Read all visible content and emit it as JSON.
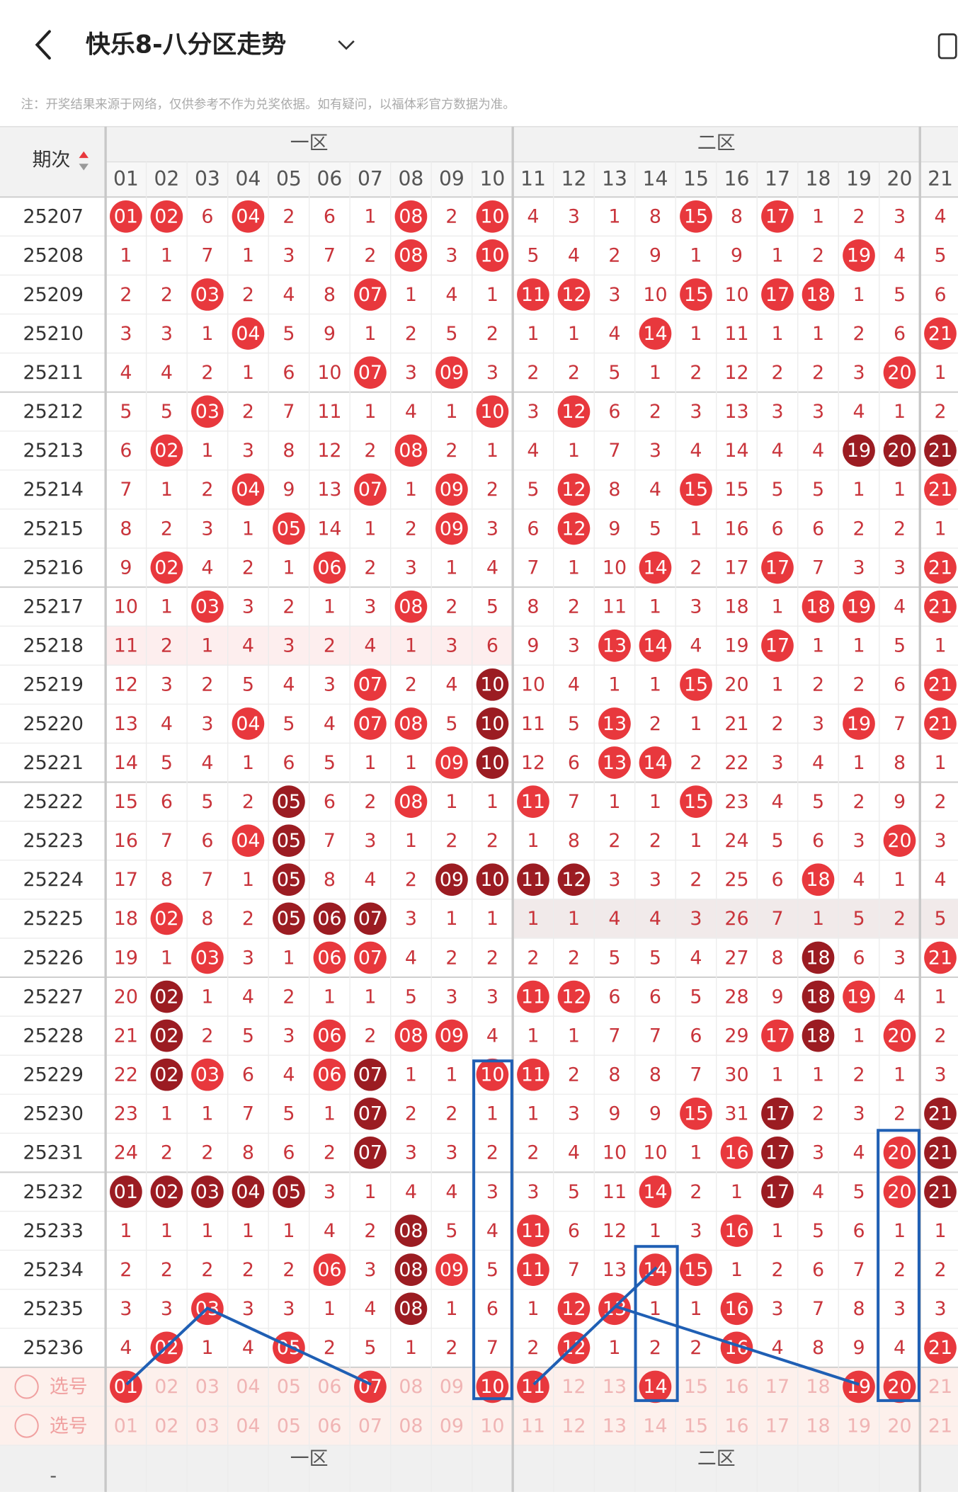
{
  "header": {
    "title": "快乐8-八分区走势",
    "note": "注：开奖结果来源于网络，仅供参考不作为兑奖依据。如有疑问，以福体彩官方数据为准。"
  },
  "table": {
    "period_header": "期次",
    "zones": [
      "一区",
      "二区"
    ],
    "columns": [
      "01",
      "02",
      "03",
      "04",
      "05",
      "06",
      "07",
      "08",
      "09",
      "10",
      "11",
      "12",
      "13",
      "14",
      "15",
      "16",
      "17",
      "18",
      "19",
      "20",
      "21"
    ],
    "rows": [
      {
        "period": "25207",
        "cells": [
          "01",
          "02",
          "6",
          "04",
          "2",
          "6",
          "1",
          "08",
          "2",
          "10",
          "4",
          "3",
          "1",
          "8",
          "15",
          "8",
          "17",
          "1",
          "2",
          "3",
          "4"
        ],
        "red_balls": [
          0,
          1,
          3,
          7,
          9,
          14,
          16
        ],
        "dark_balls": []
      },
      {
        "period": "25208",
        "cells": [
          "1",
          "1",
          "7",
          "1",
          "3",
          "7",
          "2",
          "08",
          "3",
          "10",
          "5",
          "4",
          "2",
          "9",
          "1",
          "9",
          "1",
          "2",
          "19",
          "4",
          "5"
        ],
        "red_balls": [
          7,
          9,
          18
        ],
        "dark_balls": []
      },
      {
        "period": "25209",
        "cells": [
          "2",
          "2",
          "03",
          "2",
          "4",
          "8",
          "07",
          "1",
          "4",
          "1",
          "11",
          "12",
          "3",
          "10",
          "15",
          "10",
          "17",
          "18",
          "1",
          "5",
          "6"
        ],
        "red_balls": [
          2,
          6,
          10,
          11,
          14,
          16,
          17
        ],
        "dark_balls": []
      },
      {
        "period": "25210",
        "cells": [
          "3",
          "3",
          "1",
          "04",
          "5",
          "9",
          "1",
          "2",
          "5",
          "2",
          "1",
          "1",
          "4",
          "14",
          "1",
          "11",
          "1",
          "1",
          "2",
          "6",
          "21"
        ],
        "red_balls": [
          3,
          13,
          20
        ],
        "dark_balls": []
      },
      {
        "period": "25211",
        "cells": [
          "4",
          "4",
          "2",
          "1",
          "6",
          "10",
          "07",
          "3",
          "09",
          "3",
          "2",
          "2",
          "5",
          "1",
          "2",
          "12",
          "2",
          "2",
          "3",
          "20",
          "1"
        ],
        "red_balls": [
          6,
          8,
          19
        ],
        "dark_balls": []
      },
      {
        "period": "25212",
        "cells": [
          "5",
          "5",
          "03",
          "2",
          "7",
          "11",
          "1",
          "4",
          "1",
          "10",
          "3",
          "12",
          "6",
          "2",
          "3",
          "13",
          "3",
          "3",
          "4",
          "1",
          "2"
        ],
        "red_balls": [
          2,
          9,
          11
        ],
        "dark_balls": []
      },
      {
        "period": "25213",
        "cells": [
          "6",
          "02",
          "1",
          "3",
          "8",
          "12",
          "2",
          "08",
          "2",
          "1",
          "4",
          "1",
          "7",
          "3",
          "4",
          "14",
          "4",
          "4",
          "19",
          "20",
          "21"
        ],
        "red_balls": [
          1,
          7
        ],
        "dark_balls": [
          18,
          19,
          20
        ]
      },
      {
        "period": "25214",
        "cells": [
          "7",
          "1",
          "2",
          "04",
          "9",
          "13",
          "07",
          "1",
          "09",
          "2",
          "5",
          "12",
          "8",
          "4",
          "15",
          "15",
          "5",
          "5",
          "1",
          "1",
          "21"
        ],
        "red_balls": [
          3,
          6,
          8,
          11,
          14,
          20
        ],
        "dark_balls": []
      },
      {
        "period": "25215",
        "cells": [
          "8",
          "2",
          "3",
          "1",
          "05",
          "14",
          "1",
          "2",
          "09",
          "3",
          "6",
          "12",
          "9",
          "5",
          "1",
          "16",
          "6",
          "6",
          "2",
          "2",
          "1"
        ],
        "red_balls": [
          4,
          8,
          11
        ],
        "dark_balls": []
      },
      {
        "period": "25216",
        "cells": [
          "9",
          "02",
          "4",
          "2",
          "1",
          "06",
          "2",
          "3",
          "1",
          "4",
          "7",
          "1",
          "10",
          "14",
          "2",
          "17",
          "17",
          "7",
          "3",
          "3",
          "21"
        ],
        "red_balls": [
          1,
          5,
          13,
          16,
          20
        ],
        "dark_balls": []
      },
      {
        "period": "25217",
        "cells": [
          "10",
          "1",
          "03",
          "3",
          "2",
          "1",
          "3",
          "08",
          "2",
          "5",
          "8",
          "2",
          "11",
          "1",
          "3",
          "18",
          "1",
          "18",
          "19",
          "4",
          "21"
        ],
        "red_balls": [
          2,
          7,
          17,
          18,
          20
        ],
        "dark_balls": []
      },
      {
        "period": "25218",
        "cells": [
          "11",
          "2",
          "1",
          "4",
          "3",
          "2",
          "4",
          "1",
          "3",
          "6",
          "9",
          "3",
          "13",
          "14",
          "4",
          "19",
          "17",
          "1",
          "1",
          "5",
          "1"
        ],
        "red_balls": [
          12,
          13,
          16
        ],
        "dark_balls": []
      },
      {
        "period": "25219",
        "cells": [
          "12",
          "3",
          "2",
          "5",
          "4",
          "3",
          "07",
          "2",
          "4",
          "10",
          "10",
          "4",
          "1",
          "1",
          "15",
          "20",
          "1",
          "2",
          "2",
          "6",
          "21"
        ],
        "red_balls": [
          6,
          14,
          20
        ],
        "dark_balls": [
          9
        ]
      },
      {
        "period": "25220",
        "cells": [
          "13",
          "4",
          "3",
          "04",
          "5",
          "4",
          "07",
          "08",
          "5",
          "10",
          "11",
          "5",
          "13",
          "2",
          "1",
          "21",
          "2",
          "3",
          "19",
          "7",
          "21"
        ],
        "red_balls": [
          3,
          6,
          7,
          12,
          18,
          20
        ],
        "dark_balls": [
          9
        ]
      },
      {
        "period": "25221",
        "cells": [
          "14",
          "5",
          "4",
          "1",
          "6",
          "5",
          "1",
          "1",
          "09",
          "10",
          "12",
          "6",
          "13",
          "14",
          "2",
          "22",
          "3",
          "4",
          "1",
          "8",
          "1"
        ],
        "red_balls": [
          8,
          12,
          13
        ],
        "dark_balls": [
          9
        ]
      },
      {
        "period": "25222",
        "cells": [
          "15",
          "6",
          "5",
          "2",
          "05",
          "6",
          "2",
          "08",
          "1",
          "1",
          "11",
          "7",
          "1",
          "1",
          "15",
          "23",
          "4",
          "5",
          "2",
          "9",
          "2"
        ],
        "red_balls": [
          7,
          10,
          14
        ],
        "dark_balls": [
          4
        ]
      },
      {
        "period": "25223",
        "cells": [
          "16",
          "7",
          "6",
          "04",
          "05",
          "7",
          "3",
          "1",
          "2",
          "2",
          "1",
          "8",
          "2",
          "2",
          "1",
          "24",
          "5",
          "6",
          "3",
          "20",
          "3"
        ],
        "red_balls": [
          3,
          19
        ],
        "dark_balls": [
          4
        ]
      },
      {
        "period": "25224",
        "cells": [
          "17",
          "8",
          "7",
          "1",
          "05",
          "8",
          "4",
          "2",
          "09",
          "10",
          "11",
          "12",
          "3",
          "3",
          "2",
          "25",
          "6",
          "18",
          "4",
          "1",
          "4"
        ],
        "red_balls": [
          17
        ],
        "dark_balls": [
          4,
          8,
          9,
          10,
          11
        ]
      },
      {
        "period": "25225",
        "cells": [
          "18",
          "02",
          "8",
          "2",
          "05",
          "06",
          "07",
          "3",
          "1",
          "1",
          "1",
          "1",
          "4",
          "4",
          "3",
          "26",
          "7",
          "1",
          "5",
          "2",
          "5"
        ],
        "red_balls": [
          1
        ],
        "dark_balls": [
          4,
          5,
          6
        ]
      },
      {
        "period": "25226",
        "cells": [
          "19",
          "1",
          "03",
          "3",
          "1",
          "06",
          "07",
          "4",
          "2",
          "2",
          "2",
          "2",
          "5",
          "5",
          "4",
          "27",
          "8",
          "18",
          "6",
          "3",
          "21"
        ],
        "red_balls": [
          2,
          5,
          6,
          20
        ],
        "dark_balls": [
          17
        ]
      },
      {
        "period": "25227",
        "cells": [
          "20",
          "02",
          "1",
          "4",
          "2",
          "1",
          "1",
          "5",
          "3",
          "3",
          "11",
          "12",
          "6",
          "6",
          "5",
          "28",
          "9",
          "18",
          "19",
          "4",
          "1"
        ],
        "red_balls": [
          10,
          11,
          18
        ],
        "dark_balls": [
          1,
          17
        ]
      },
      {
        "period": "25228",
        "cells": [
          "21",
          "02",
          "2",
          "5",
          "3",
          "06",
          "2",
          "08",
          "09",
          "4",
          "1",
          "1",
          "7",
          "7",
          "6",
          "29",
          "17",
          "18",
          "1",
          "20",
          "2"
        ],
        "red_balls": [
          5,
          7,
          8,
          16,
          19
        ],
        "dark_balls": [
          1,
          17
        ]
      },
      {
        "period": "25229",
        "cells": [
          "22",
          "02",
          "03",
          "6",
          "4",
          "06",
          "07",
          "1",
          "1",
          "10",
          "11",
          "2",
          "8",
          "8",
          "7",
          "30",
          "1",
          "1",
          "2",
          "1",
          "3"
        ],
        "red_balls": [
          2,
          5,
          9,
          10
        ],
        "dark_balls": [
          1,
          6
        ]
      },
      {
        "period": "25230",
        "cells": [
          "23",
          "1",
          "1",
          "7",
          "5",
          "1",
          "07",
          "2",
          "2",
          "1",
          "1",
          "3",
          "9",
          "9",
          "15",
          "31",
          "17",
          "2",
          "3",
          "2",
          "21"
        ],
        "red_balls": [
          14
        ],
        "dark_balls": [
          6,
          16,
          20
        ]
      },
      {
        "period": "25231",
        "cells": [
          "24",
          "2",
          "2",
          "8",
          "6",
          "2",
          "07",
          "3",
          "3",
          "2",
          "2",
          "4",
          "10",
          "10",
          "1",
          "16",
          "17",
          "3",
          "4",
          "20",
          "21"
        ],
        "red_balls": [
          15,
          19
        ],
        "dark_balls": [
          6,
          16,
          20
        ]
      },
      {
        "period": "25232",
        "cells": [
          "01",
          "02",
          "03",
          "04",
          "05",
          "3",
          "1",
          "4",
          "4",
          "3",
          "3",
          "5",
          "11",
          "14",
          "2",
          "1",
          "17",
          "4",
          "5",
          "20",
          "21"
        ],
        "red_balls": [
          13,
          19
        ],
        "dark_balls": [
          0,
          1,
          2,
          3,
          4,
          16,
          20
        ]
      },
      {
        "period": "25233",
        "cells": [
          "1",
          "1",
          "1",
          "1",
          "1",
          "4",
          "2",
          "08",
          "5",
          "4",
          "11",
          "6",
          "12",
          "1",
          "3",
          "16",
          "1",
          "5",
          "6",
          "1",
          "1"
        ],
        "red_balls": [
          10,
          15
        ],
        "dark_balls": [
          7
        ]
      },
      {
        "period": "25234",
        "cells": [
          "2",
          "2",
          "2",
          "2",
          "2",
          "06",
          "3",
          "08",
          "09",
          "5",
          "11",
          "7",
          "13",
          "14",
          "15",
          "1",
          "2",
          "6",
          "7",
          "2",
          "2"
        ],
        "red_balls": [
          5,
          8,
          10,
          13,
          14
        ],
        "dark_balls": [
          7
        ]
      },
      {
        "period": "25235",
        "cells": [
          "3",
          "3",
          "03",
          "3",
          "3",
          "1",
          "4",
          "08",
          "1",
          "6",
          "1",
          "12",
          "13",
          "1",
          "1",
          "16",
          "3",
          "7",
          "8",
          "3",
          "3"
        ],
        "red_balls": [
          2,
          11,
          12,
          15
        ],
        "dark_balls": [
          7
        ]
      },
      {
        "period": "25236",
        "cells": [
          "4",
          "02",
          "1",
          "4",
          "05",
          "2",
          "5",
          "1",
          "2",
          "7",
          "2",
          "12",
          "1",
          "2",
          "2",
          "16",
          "4",
          "8",
          "9",
          "4",
          "21"
        ],
        "red_balls": [
          1,
          4,
          11,
          15,
          20
        ],
        "dark_balls": []
      }
    ],
    "select_rows": [
      {
        "label": "选号",
        "cells": [
          "01",
          "02",
          "03",
          "04",
          "05",
          "06",
          "07",
          "08",
          "09",
          "10",
          "11",
          "12",
          "13",
          "14",
          "15",
          "16",
          "17",
          "18",
          "19",
          "20",
          "21"
        ],
        "red_balls": [
          0,
          6,
          9,
          10,
          13,
          18,
          19
        ]
      },
      {
        "label": "选号",
        "cells": [
          "01",
          "02",
          "03",
          "04",
          "05",
          "06",
          "07",
          "08",
          "09",
          "10",
          "11",
          "12",
          "13",
          "14",
          "15",
          "16",
          "17",
          "18",
          "19",
          "20",
          "21"
        ],
        "red_balls": []
      }
    ]
  },
  "footer": {
    "dash": "-",
    "zones": [
      "一区",
      "二区"
    ]
  }
}
